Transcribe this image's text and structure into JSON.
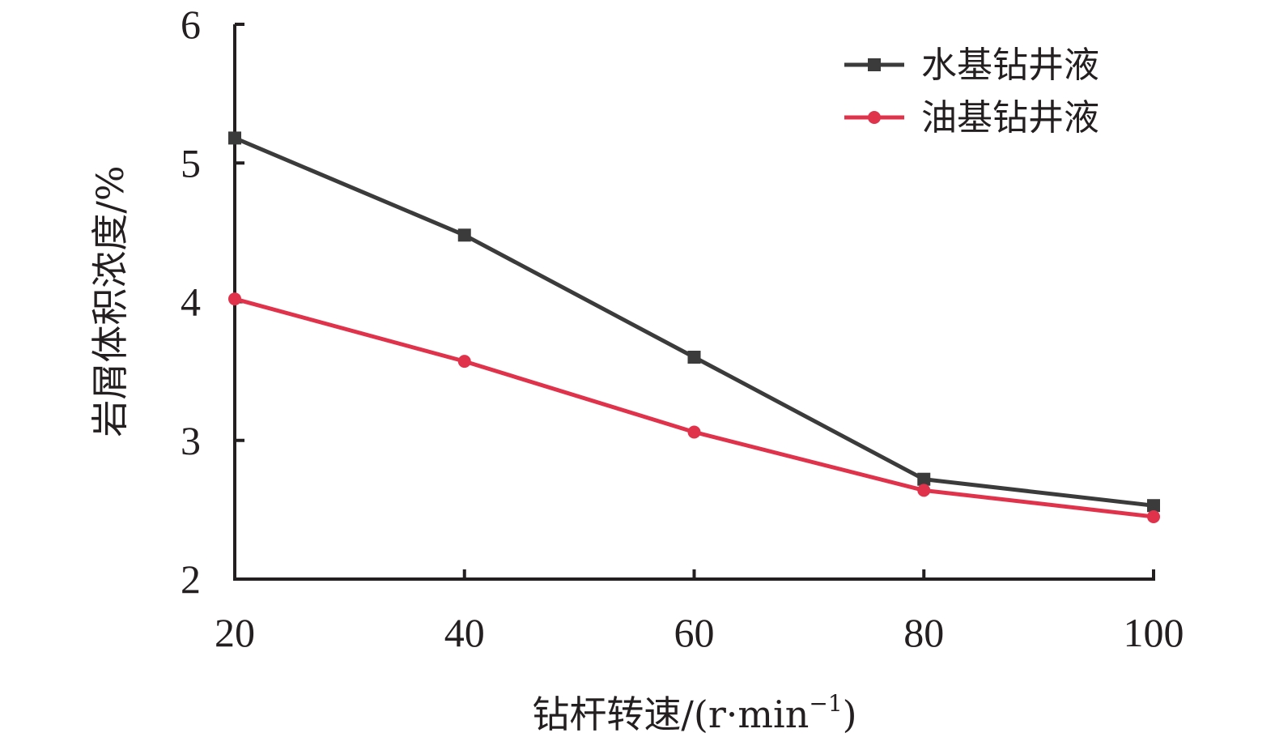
{
  "chart_data": {
    "type": "line",
    "x": [
      20,
      40,
      60,
      80,
      100
    ],
    "x_ticks": [
      "20",
      "40",
      "60",
      "80",
      "100"
    ],
    "y_ticks": [
      "2",
      "3",
      "4",
      "5",
      "6"
    ],
    "xlim": [
      20,
      100
    ],
    "ylim": [
      2,
      6
    ],
    "xlabel": "钻杆转速/(r·min",
    "xlabel_sup": "−1",
    "xlabel_close": ")",
    "ylabel": "岩屑体积浓度/%",
    "grid": false,
    "legend_position": "top-right",
    "series": [
      {
        "name": "水基钻井液",
        "color": "#3b3b3b",
        "marker": "square",
        "values": [
          5.18,
          4.48,
          3.6,
          2.72,
          2.53
        ]
      },
      {
        "name": "油基钻井液",
        "color": "#e0334b",
        "marker": "circle",
        "values": [
          4.02,
          3.57,
          3.06,
          2.64,
          2.45
        ]
      }
    ]
  }
}
